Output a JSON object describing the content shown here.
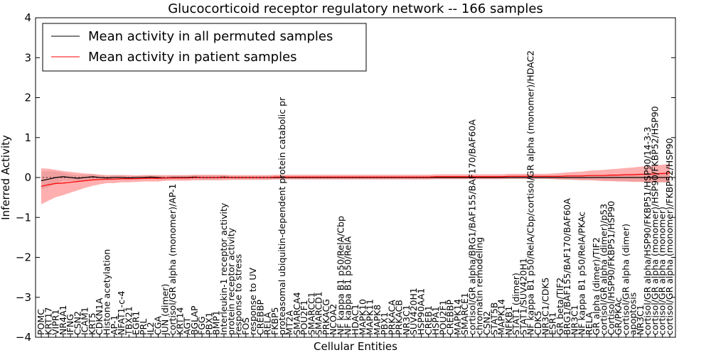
{
  "chart_data": {
    "type": "line",
    "title": "Glucocorticoid receptor regulatory network -- 166 samples",
    "xlabel": "Cellular Entities",
    "ylabel": "Inferred Activity",
    "ylim": [
      -4,
      4
    ],
    "yticks": [
      "4",
      "3",
      "2",
      "1",
      "0",
      "−1",
      "−2",
      "−3",
      "−4"
    ],
    "legend": {
      "placement": "top-left",
      "entries": [
        "Mean activity in all permuted samples",
        "Mean activity in patient samples"
      ]
    },
    "categories": [
      "POMC",
      "KRT17",
      "VIPR1",
      "NR4A1",
      "IFNG",
      "CSN2",
      "ICAM1",
      "KRT5",
      "CDKN1A",
      "Histone acetylation",
      "AP-1",
      "NFAT1-c-4",
      "TBX21",
      "EGR1",
      "PRL",
      "IL2",
      "CGA",
      "JUN (dimer)",
      "cortisol/GR alpha (monomer)/AP-1",
      "KRT14",
      "AGT",
      "BGLAP",
      "FGG",
      "PBX1",
      "BMP1",
      "Interleukin-1 receptor activity",
      "protein receptor activity",
      "response to stress",
      "FOS",
      "response to UV",
      "CREBBP",
      "RELA",
      "FKBP5",
      "proteasomal ubiquitin-dependent protein catabolic pr",
      "MT2A",
      "SMARCA4",
      "POU2F1",
      "SMARCC1",
      "SMARCD1",
      "PRKACG",
      "NCOA2",
      "NF kappa B1 p50/RelA/Cbp",
      "NF kappa B1 p50/RelA",
      "HDAC1",
      "MAPK10",
      "MAPK11",
      "MAPK8",
      "PBX1",
      "PRKACA",
      "PRKACB",
      "NR3C1",
      "SUV420H1",
      "HSP90AA1",
      "CREB1",
      "HSPA1",
      "POU2F1",
      "CREBBP",
      "MAPK14",
      "SMARCE1",
      "cortisol/GR alpha/BRG1/BAF155/BAF170/BAF60A",
      "chromatin remodeling",
      "CSN2",
      "STAT5B",
      "MAPK14",
      "NFKB1",
      "STAT1 (dimer)",
      "STAT1/SUV420H1",
      "NF kappa B1 p50/RelA/Cbp/cortisol/GR alpha (monomer)/HDAC2",
      "CDK5",
      "NR3C1/CDK5",
      "ESR1",
      "GR beta/TIF2",
      "BRG1/BAF155/BAF170/BAF60A",
      "NR3C1",
      "NF kappa B1 p50/RelA/PKAc",
      "RELA",
      "GR alpha (dimer)/TIF2",
      "cortisol/GR alpha (dimer)/p53",
      "Cortisol/HSP90/FKBP51/HSP90",
      "GR/PKAc",
      "cortisol/GR alpha (dimer)",
      "apoptosis",
      "NR3C1",
      "cortisol/GR alpha/HSP90/FKBP51/HSP90/14-3-3",
      "cortisol/GR alpha (monomer)/HSP90/FKBP52/HSP90",
      "cortisol/GR alpha (monomer)",
      "cortisol/GR alpha (monomer)/FKBP52/HSP90"
    ],
    "entity_label_lengths": [
      1,
      1,
      1,
      1,
      1,
      1,
      1,
      1,
      1,
      1.7,
      1,
      1.5,
      1,
      1,
      1,
      1,
      1,
      1.2,
      2.3,
      1,
      1,
      1,
      1,
      1,
      1,
      2.0,
      1.9,
      1.5,
      1,
      1.5,
      1,
      1,
      1,
      2.8,
      1,
      1,
      1,
      1,
      1,
      1,
      1,
      1.7,
      1.5,
      1,
      1,
      1,
      1,
      1,
      1,
      1,
      1,
      1.2,
      1.2,
      1,
      1,
      1,
      1,
      1,
      1,
      3.0,
      1.8,
      1,
      1,
      1,
      1,
      1,
      1.4,
      3.3,
      1,
      1,
      1,
      1.3,
      2.1,
      1,
      1.8,
      1,
      2.0,
      2.3,
      2.3,
      1,
      1.6,
      1,
      1,
      2.6,
      2.4,
      2.1,
      2.1
    ],
    "series": [
      {
        "name": "Mean activity in all permuted samples",
        "color": "#000000",
        "values": [
          -0.08,
          -0.04,
          0.0,
          0.02,
          0.0,
          -0.02,
          0.0,
          0.02,
          0.0,
          -0.01,
          0.0,
          0.0,
          -0.01,
          0.0,
          0.0,
          0.01,
          0.0,
          -0.01,
          0.0,
          0.0,
          0.0,
          0.01,
          0.0,
          0.0,
          0.0,
          0.01,
          0.0,
          0.0,
          0.0,
          0.0,
          0.0,
          0.0,
          0.0,
          0.0,
          0.0,
          0.0,
          0.0,
          0.0,
          0.0,
          0.0,
          0.0,
          0.0,
          0.0,
          0.0,
          0.0,
          0.0,
          0.0,
          0.0,
          0.0,
          0.0,
          0.0,
          0.0,
          0.0,
          0.0,
          0.0,
          0.0,
          0.0,
          0.0,
          0.0,
          0.0,
          0.0,
          0.0,
          0.0,
          0.0,
          0.0,
          0.0,
          0.0,
          0.0,
          0.0,
          0.0,
          0.0,
          0.0,
          0.0,
          0.0,
          0.0,
          0.0,
          0.0,
          0.0,
          0.0,
          0.0,
          0.0,
          0.0,
          0.0,
          0.0,
          0.0,
          0.0,
          0.0
        ],
        "band_halfwidth": [
          0.22,
          0.2,
          0.15,
          0.1,
          0.08,
          0.08,
          0.07,
          0.06,
          0.06,
          0.05,
          0.06,
          0.06,
          0.05,
          0.05,
          0.05,
          0.05,
          0.05,
          0.05,
          0.05,
          0.05,
          0.05,
          0.05,
          0.05,
          0.05,
          0.05,
          0.04,
          0.04,
          0.04,
          0.04,
          0.04,
          0.04,
          0.04,
          0.04,
          0.04,
          0.04,
          0.04,
          0.04,
          0.04,
          0.04,
          0.04,
          0.04,
          0.04,
          0.04,
          0.04,
          0.04,
          0.04,
          0.04,
          0.04,
          0.04,
          0.04,
          0.04,
          0.04,
          0.04,
          0.04,
          0.04,
          0.04,
          0.04,
          0.04,
          0.04,
          0.04,
          0.04,
          0.04,
          0.04,
          0.04,
          0.04,
          0.04,
          0.04,
          0.04,
          0.04,
          0.04,
          0.04,
          0.05,
          0.06,
          0.06,
          0.06,
          0.06,
          0.06,
          0.07,
          0.08,
          0.08,
          0.09,
          0.1,
          0.1,
          0.11,
          0.12,
          0.12,
          0.13
        ]
      },
      {
        "name": "Mean activity in patient samples",
        "color": "#ff0000",
        "values": [
          -0.22,
          -0.18,
          -0.15,
          -0.14,
          -0.12,
          -0.1,
          -0.08,
          -0.06,
          -0.05,
          -0.04,
          -0.04,
          -0.03,
          -0.03,
          -0.03,
          -0.02,
          -0.02,
          -0.02,
          -0.01,
          -0.01,
          -0.01,
          -0.01,
          0.0,
          0.0,
          0.0,
          0.0,
          0.0,
          0.0,
          0.0,
          0.0,
          0.0,
          0.0,
          0.0,
          0.01,
          0.01,
          0.01,
          0.01,
          0.01,
          0.01,
          0.01,
          0.01,
          0.01,
          0.01,
          0.01,
          0.01,
          0.01,
          0.01,
          0.01,
          0.01,
          0.01,
          0.01,
          0.01,
          0.01,
          0.01,
          0.01,
          0.02,
          0.02,
          0.02,
          0.02,
          0.02,
          0.02,
          0.02,
          0.02,
          0.02,
          0.02,
          0.03,
          0.03,
          0.03,
          0.03,
          0.03,
          0.03,
          0.03,
          0.03,
          0.04,
          0.04,
          0.04,
          0.05,
          0.05,
          0.05,
          0.06,
          0.06,
          0.07,
          0.07,
          0.08,
          0.08,
          0.09,
          0.1,
          0.11
        ],
        "band_halfwidth": [
          0.45,
          0.4,
          0.34,
          0.3,
          0.26,
          0.22,
          0.18,
          0.15,
          0.12,
          0.1,
          0.1,
          0.09,
          0.09,
          0.08,
          0.08,
          0.08,
          0.08,
          0.07,
          0.07,
          0.07,
          0.07,
          0.07,
          0.07,
          0.07,
          0.07,
          0.07,
          0.06,
          0.06,
          0.06,
          0.06,
          0.06,
          0.06,
          0.06,
          0.06,
          0.06,
          0.06,
          0.06,
          0.06,
          0.06,
          0.06,
          0.06,
          0.06,
          0.06,
          0.06,
          0.06,
          0.06,
          0.06,
          0.06,
          0.06,
          0.06,
          0.06,
          0.06,
          0.06,
          0.06,
          0.06,
          0.06,
          0.06,
          0.06,
          0.06,
          0.06,
          0.06,
          0.06,
          0.06,
          0.06,
          0.06,
          0.06,
          0.06,
          0.06,
          0.06,
          0.06,
          0.07,
          0.08,
          0.09,
          0.1,
          0.11,
          0.12,
          0.13,
          0.14,
          0.15,
          0.16,
          0.17,
          0.18,
          0.19,
          0.2,
          0.21,
          0.22,
          0.23
        ]
      }
    ]
  }
}
